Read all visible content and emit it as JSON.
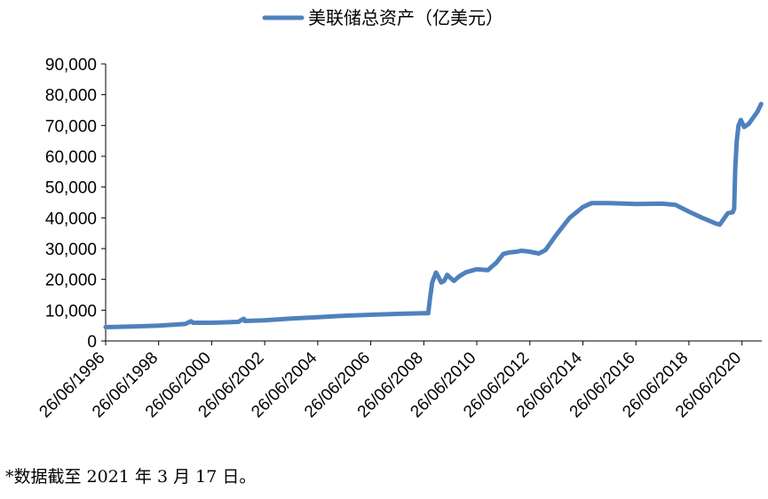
{
  "chart_data": {
    "type": "line",
    "title": "",
    "xlabel": "",
    "ylabel": "",
    "ylim": [
      0,
      90000
    ],
    "yticks": [
      "0",
      "10,000",
      "20,000",
      "30,000",
      "40,000",
      "50,000",
      "60,000",
      "70,000",
      "80,000",
      "90,000"
    ],
    "xticks": [
      "26/06/1996",
      "26/06/1998",
      "26/06/2000",
      "26/06/2002",
      "26/06/2004",
      "26/06/2006",
      "26/06/2008",
      "26/06/2010",
      "26/06/2012",
      "26/06/2014",
      "26/06/2016",
      "26/06/2018",
      "26/06/2020"
    ],
    "grid": false,
    "legend_position": "top-center",
    "series": [
      {
        "name": "美联储总资产（亿美元）",
        "color": "#4F81BD",
        "points": [
          [
            "1996-06-26",
            4500
          ],
          [
            "1997-06-26",
            4700
          ],
          [
            "1998-06-26",
            5000
          ],
          [
            "1999-06-26",
            5500
          ],
          [
            "1999-09-15",
            6400
          ],
          [
            "1999-10-15",
            5900
          ],
          [
            "2000-06-26",
            5900
          ],
          [
            "2001-06-26",
            6200
          ],
          [
            "2001-09-12",
            7200
          ],
          [
            "2001-09-26",
            6500
          ],
          [
            "2002-06-26",
            6700
          ],
          [
            "2003-06-26",
            7300
          ],
          [
            "2004-06-26",
            7700
          ],
          [
            "2005-06-26",
            8200
          ],
          [
            "2006-06-26",
            8500
          ],
          [
            "2007-06-26",
            8800
          ],
          [
            "2008-06-26",
            9000
          ],
          [
            "2008-08-26",
            9000
          ],
          [
            "2008-09-20",
            14000
          ],
          [
            "2008-10-20",
            19000
          ],
          [
            "2008-12-10",
            22200
          ],
          [
            "2009-01-10",
            21000
          ],
          [
            "2009-02-20",
            19000
          ],
          [
            "2009-04-01",
            19500
          ],
          [
            "2009-05-15",
            21500
          ],
          [
            "2009-06-26",
            20500
          ],
          [
            "2009-08-15",
            19500
          ],
          [
            "2009-10-26",
            21000
          ],
          [
            "2010-01-26",
            22300
          ],
          [
            "2010-06-26",
            23300
          ],
          [
            "2010-11-26",
            23000
          ],
          [
            "2011-03-26",
            25500
          ],
          [
            "2011-06-26",
            28300
          ],
          [
            "2011-09-26",
            28800
          ],
          [
            "2011-12-26",
            29000
          ],
          [
            "2012-02-26",
            29300
          ],
          [
            "2012-06-26",
            29000
          ],
          [
            "2012-10-26",
            28400
          ],
          [
            "2013-01-26",
            29500
          ],
          [
            "2013-06-26",
            34500
          ],
          [
            "2013-12-26",
            40000
          ],
          [
            "2014-06-26",
            43500
          ],
          [
            "2014-10-26",
            44800
          ],
          [
            "2015-06-26",
            44800
          ],
          [
            "2016-06-26",
            44500
          ],
          [
            "2017-06-26",
            44600
          ],
          [
            "2017-12-26",
            44200
          ],
          [
            "2018-06-26",
            42000
          ],
          [
            "2018-12-26",
            40000
          ],
          [
            "2019-06-26",
            38200
          ],
          [
            "2019-08-26",
            37800
          ],
          [
            "2019-10-15",
            39500
          ],
          [
            "2019-12-15",
            41500
          ],
          [
            "2020-02-20",
            41800
          ],
          [
            "2020-03-10",
            43000
          ],
          [
            "2020-03-25",
            56000
          ],
          [
            "2020-04-15",
            65000
          ],
          [
            "2020-05-10",
            70000
          ],
          [
            "2020-06-10",
            71800
          ],
          [
            "2020-07-26",
            69500
          ],
          [
            "2020-09-26",
            70500
          ],
          [
            "2020-11-26",
            72500
          ],
          [
            "2021-01-26",
            74500
          ],
          [
            "2021-03-17",
            77000
          ]
        ]
      }
    ]
  },
  "footnote": "*数据截至 2021 年 3 月 17 日。"
}
